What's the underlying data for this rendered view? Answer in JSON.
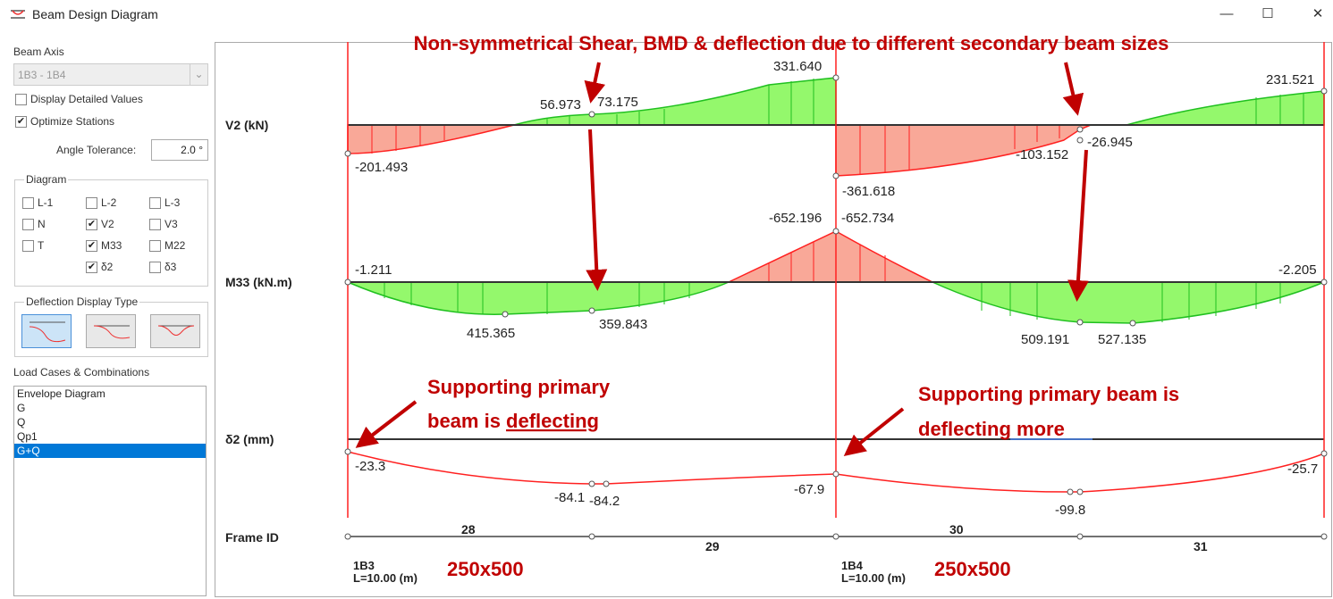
{
  "window": {
    "title": "Beam Design Diagram",
    "minimize": "—",
    "maximize": "☐",
    "close": "✕"
  },
  "panel": {
    "beam_axis_label": "Beam Axis",
    "beam_axis_value": "1B3 - 1B4",
    "display_detailed": "Display Detailed Values",
    "optimize_stations": "Optimize Stations",
    "angle_tolerance_label": "Angle Tolerance:",
    "angle_tolerance_value": "2.0 °",
    "diagram_legend": "Diagram",
    "diagram_options": [
      {
        "label": "L-1",
        "checked": false
      },
      {
        "label": "L-2",
        "checked": false
      },
      {
        "label": "L-3",
        "checked": false
      },
      {
        "label": "N",
        "checked": false
      },
      {
        "label": "V2",
        "checked": true
      },
      {
        "label": "V3",
        "checked": false
      },
      {
        "label": "T",
        "checked": false
      },
      {
        "label": "M33",
        "checked": true
      },
      {
        "label": "M22",
        "checked": false
      },
      {
        "label": "δ2",
        "checked": true
      },
      {
        "label": "δ3",
        "checked": false
      }
    ],
    "deflection_legend": "Deflection Display Type",
    "load_cases_label": "Load Cases & Combinations",
    "load_cases": [
      "Envelope Diagram",
      "G",
      "Q",
      "Qp1",
      "G+Q"
    ],
    "selected_load_case": "G+Q"
  },
  "diagram": {
    "rows": {
      "v2": "V2 (kN)",
      "m33": "M33 (kN.m)",
      "d2": "δ2 (mm)",
      "frame": "Frame ID"
    },
    "v2_values": {
      "left": "-201.493",
      "a": "56.973",
      "b": "73.175",
      "peak": "331.640",
      "mid_neg": "-361.618",
      "c": "-103.152",
      "d": "-26.945",
      "right": "231.521"
    },
    "m33_values": {
      "left": "-1.211",
      "a": "415.365",
      "b": "359.843",
      "mid1": "-652.196",
      "mid2": "-652.734",
      "c": "509.191",
      "d": "527.135",
      "right": "-2.205"
    },
    "d2_values": {
      "left": "-23.3",
      "a": "-84.1",
      "b": "-84.2",
      "mid": "-67.9",
      "c": "-99.8",
      "right": "-25.7"
    },
    "frames": [
      "28",
      "29",
      "30",
      "31"
    ],
    "supports": [
      {
        "name": "1B3",
        "length": "L=10.00 (m)",
        "size": "250x500"
      },
      {
        "name": "1B4",
        "length": "L=10.00 (m)",
        "size": "250x500"
      }
    ]
  },
  "annotations": {
    "title": "Non-symmetrical Shear, BMD & deflection due to different secondary beam sizes",
    "note1_line1": "Supporting primary",
    "note1_line2a": "beam is ",
    "note1_line2b": "deflecting",
    "note2_line1": "Supporting primary beam is",
    "note2_line2a": "deflecting ",
    "note2_line2b": "more"
  },
  "colors": {
    "positive": "#94f86c",
    "negative": "#f9a898",
    "beam_line": "#ff2020",
    "annotation": "#c00000"
  }
}
